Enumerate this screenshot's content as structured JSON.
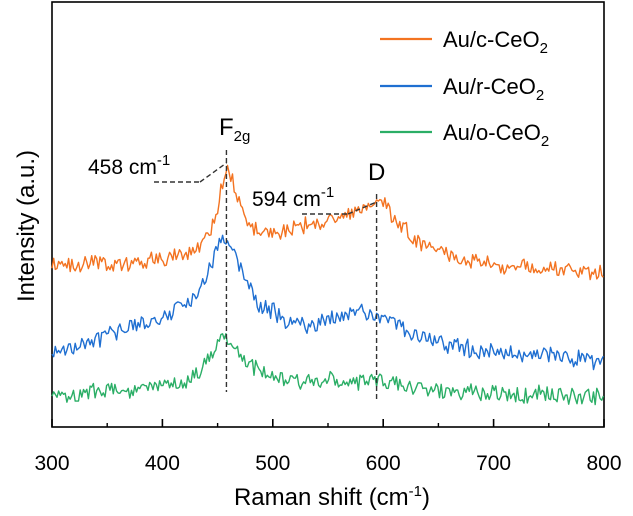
{
  "chart_data": {
    "type": "line",
    "xlabel": "Raman shift (cm",
    "xlabel_sup": "-1",
    "xlabel_end": ")",
    "ylabel": "Intensity (a.u.)",
    "xlim": [
      300,
      800
    ],
    "xticks": [
      "300",
      "400",
      "500",
      "600",
      "700",
      "800"
    ],
    "yticks_shown": false,
    "legend_position": "top-right",
    "series": [
      {
        "name": "Au/c-CeO",
        "name_sub": "2",
        "color": "#f37321",
        "x": [
          300,
          320,
          340,
          360,
          380,
          400,
          410,
          420,
          430,
          440,
          445,
          450,
          455,
          460,
          465,
          470,
          475,
          480,
          490,
          500,
          510,
          520,
          530,
          540,
          550,
          560,
          570,
          580,
          590,
          595,
          600,
          610,
          620,
          630,
          640,
          650,
          660,
          670,
          680,
          690,
          700,
          720,
          740,
          760,
          780,
          800
        ],
        "y": [
          0.06,
          0.065,
          0.07,
          0.075,
          0.08,
          0.1,
          0.11,
          0.13,
          0.17,
          0.25,
          0.32,
          0.45,
          0.62,
          0.72,
          0.58,
          0.45,
          0.38,
          0.3,
          0.28,
          0.27,
          0.28,
          0.3,
          0.32,
          0.33,
          0.36,
          0.38,
          0.41,
          0.46,
          0.47,
          0.48,
          0.46,
          0.38,
          0.3,
          0.22,
          0.17,
          0.14,
          0.12,
          0.1,
          0.08,
          0.07,
          0.06,
          0.05,
          0.04,
          0.03,
          0.02,
          0.0
        ]
      },
      {
        "name": "Au/r-CeO",
        "name_sub": "2",
        "color": "#1f6fd1",
        "x": [
          300,
          320,
          340,
          360,
          380,
          400,
          410,
          420,
          430,
          440,
          450,
          455,
          460,
          465,
          470,
          475,
          480,
          490,
          500,
          510,
          520,
          530,
          540,
          550,
          560,
          570,
          580,
          590,
          600,
          610,
          620,
          630,
          640,
          650,
          660,
          670,
          680,
          700,
          720,
          740,
          760,
          780,
          800
        ],
        "y": [
          0.06,
          0.08,
          0.12,
          0.16,
          0.2,
          0.24,
          0.28,
          0.3,
          0.38,
          0.48,
          0.62,
          0.66,
          0.62,
          0.58,
          0.52,
          0.45,
          0.38,
          0.3,
          0.28,
          0.22,
          0.21,
          0.2,
          0.2,
          0.22,
          0.24,
          0.25,
          0.28,
          0.27,
          0.25,
          0.22,
          0.18,
          0.14,
          0.12,
          0.1,
          0.09,
          0.08,
          0.07,
          0.05,
          0.04,
          0.04,
          0.03,
          0.02,
          0.0
        ]
      },
      {
        "name": "Au/o-CeO",
        "name_sub": "2",
        "color": "#2bae66",
        "x": [
          300,
          320,
          340,
          360,
          380,
          400,
          410,
          420,
          430,
          440,
          445,
          450,
          455,
          460,
          465,
          470,
          480,
          490,
          500,
          510,
          520,
          530,
          540,
          550,
          560,
          570,
          580,
          590,
          595,
          600,
          610,
          620,
          630,
          640,
          650,
          660,
          680,
          700,
          720,
          740,
          760,
          780,
          800
        ],
        "y": [
          0.06,
          0.06,
          0.07,
          0.08,
          0.1,
          0.12,
          0.14,
          0.16,
          0.2,
          0.3,
          0.38,
          0.5,
          0.55,
          0.52,
          0.44,
          0.38,
          0.3,
          0.24,
          0.2,
          0.18,
          0.17,
          0.16,
          0.17,
          0.18,
          0.16,
          0.16,
          0.17,
          0.18,
          0.2,
          0.16,
          0.14,
          0.12,
          0.11,
          0.1,
          0.09,
          0.08,
          0.07,
          0.06,
          0.05,
          0.05,
          0.04,
          0.04,
          0.03
        ]
      }
    ],
    "annotations": [
      {
        "id": "F2g",
        "x": 458,
        "label": "458 cm",
        "label_sup": "-1",
        "peak": "F",
        "peak_sub": "2g"
      },
      {
        "id": "D",
        "x": 594,
        "label": "594 cm",
        "label_sup": "-1",
        "peak": "D",
        "peak_sub": ""
      }
    ]
  }
}
